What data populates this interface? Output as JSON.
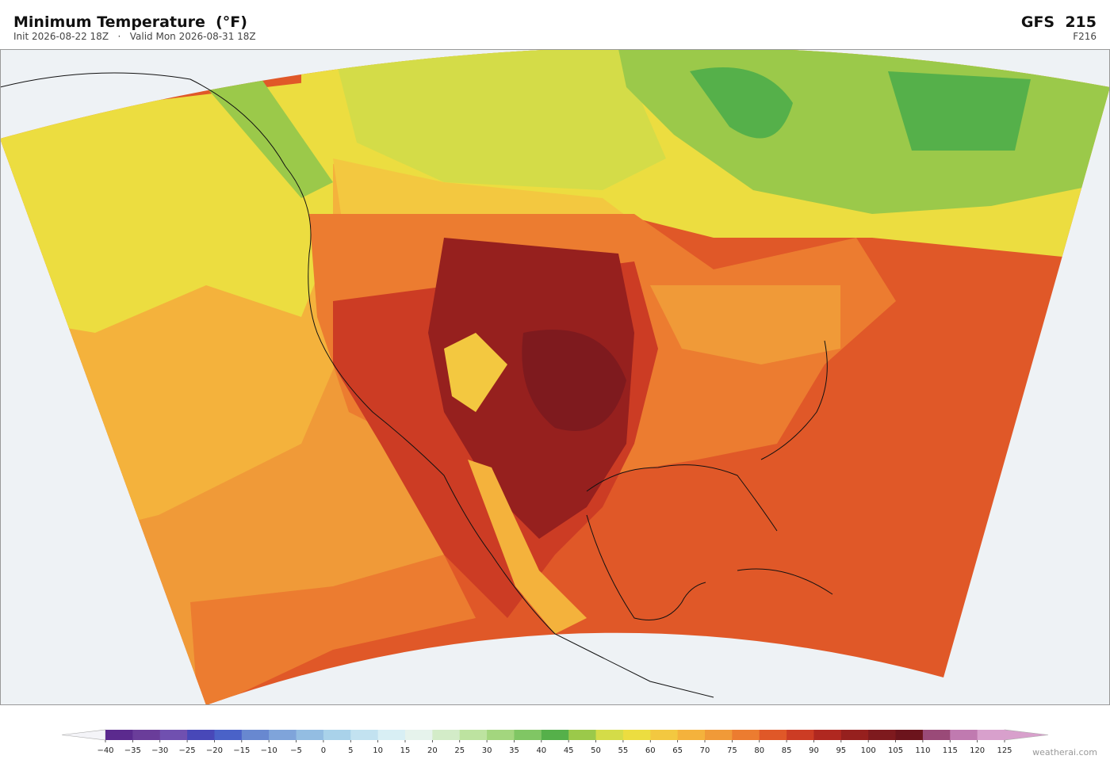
{
  "header": {
    "title": "Minimum Temperature  (°F)",
    "subtitle": "Init 2026-08-22 18Z   ·   Valid Mon 2026-08-31 18Z",
    "model": "GFS  215",
    "forecast_hour": "F216"
  },
  "colorbar": {
    "ticks": [
      {
        "value": -40,
        "label": "−40"
      },
      {
        "value": -35,
        "label": "−35"
      },
      {
        "value": -30,
        "label": "−30"
      },
      {
        "value": -25,
        "label": "−25"
      },
      {
        "value": -20,
        "label": "−20"
      },
      {
        "value": -15,
        "label": "−15"
      },
      {
        "value": -10,
        "label": "−10"
      },
      {
        "value": -5,
        "label": "−5"
      },
      0,
      5,
      10,
      15,
      20,
      25,
      30,
      35,
      40,
      45,
      50,
      55,
      60,
      65,
      70,
      75,
      80,
      85,
      90,
      95,
      100,
      105,
      110,
      115,
      120,
      125
    ],
    "colors": [
      "#5b2a8e",
      "#6a3d9a",
      "#7050b0",
      "#4848b8",
      "#4a62c8",
      "#6888d0",
      "#7fa4da",
      "#93bde2",
      "#a9d2ea",
      "#c2e2f0",
      "#d8eff4",
      "#e6f3ec",
      "#d3ecc8",
      "#bde3a0",
      "#a3d67e",
      "#80c664",
      "#55b04a",
      "#9bc94a",
      "#d4dc48",
      "#ecdd40",
      "#f3c840",
      "#f4b23c",
      "#f09a38",
      "#ec7c30",
      "#e05828",
      "#cc3c24",
      "#b02820",
      "#96201e",
      "#7e1a1e",
      "#6c141c",
      "#9a4a78",
      "#c07ab0",
      "#d8a0cc"
    ],
    "under_color": "#f4f4f8",
    "over_color": "#d8a0cc"
  },
  "footer": {
    "watermark": "weatherai.com"
  }
}
